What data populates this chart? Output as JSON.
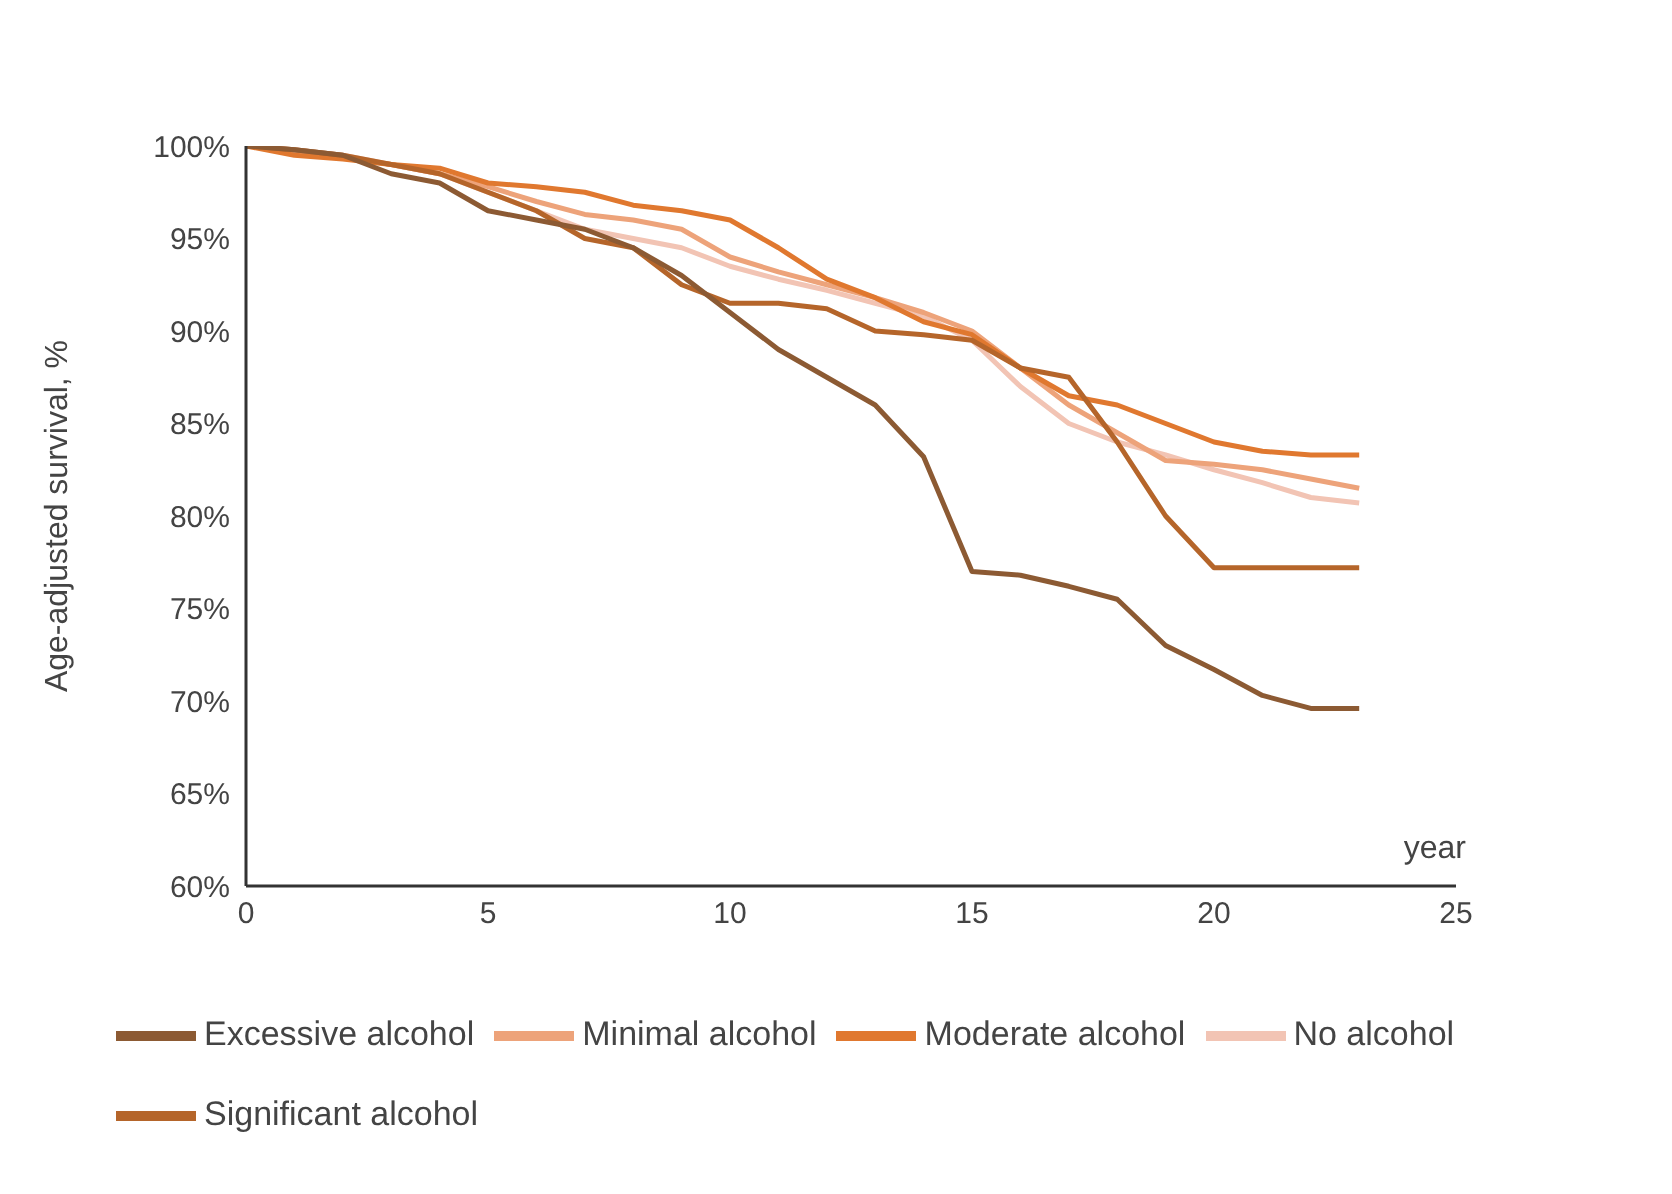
{
  "chart_data": {
    "type": "line",
    "xlabel": "year",
    "ylabel": "Age-adjusted survival, %",
    "x": [
      0,
      1,
      2,
      3,
      4,
      5,
      6,
      7,
      8,
      9,
      10,
      11,
      12,
      13,
      14,
      15,
      16,
      17,
      18,
      19,
      20,
      21,
      22,
      23
    ],
    "xlim": [
      0,
      25
    ],
    "xticks": [
      0,
      5,
      10,
      15,
      20,
      25
    ],
    "ylim": [
      60,
      100
    ],
    "yticks": [
      {
        "value": 60,
        "label": "60%"
      },
      {
        "value": 65,
        "label": "65%"
      },
      {
        "value": 70,
        "label": "70%"
      },
      {
        "value": 75,
        "label": "75%"
      },
      {
        "value": 80,
        "label": "80%"
      },
      {
        "value": 85,
        "label": "85%"
      },
      {
        "value": 90,
        "label": "90%"
      },
      {
        "value": 95,
        "label": "95%"
      },
      {
        "value": 100,
        "label": "100%"
      }
    ],
    "grid": false,
    "legend": "bottom",
    "marker": "none",
    "line_style": "solid",
    "series": [
      {
        "name": "No alcohol",
        "color": "#f2c4b4",
        "values": [
          100,
          99.8,
          99.5,
          99,
          98.5,
          97.5,
          96.5,
          95.5,
          95,
          94.5,
          93.5,
          92.8,
          92.2,
          91.5,
          90.8,
          89.5,
          87,
          85,
          84,
          83.3,
          82.5,
          81.8,
          81,
          80.7
        ]
      },
      {
        "name": "Minimal alcohol",
        "color": "#eda37a",
        "values": [
          100,
          99.7,
          99.4,
          99,
          98.5,
          97.8,
          97,
          96.3,
          96,
          95.5,
          94,
          93.2,
          92.5,
          91.8,
          91,
          90,
          88,
          86,
          84.5,
          83,
          82.8,
          82.5,
          82,
          81.5
        ]
      },
      {
        "name": "Moderate alcohol",
        "color": "#e0782f",
        "values": [
          100,
          99.5,
          99.3,
          99,
          98.8,
          98,
          97.8,
          97.5,
          96.8,
          96.5,
          96,
          94.5,
          92.8,
          91.8,
          90.5,
          89.8,
          88,
          86.5,
          86,
          85,
          84,
          83.5,
          83.3,
          83.3
        ]
      },
      {
        "name": "Significant alcohol",
        "color": "#b5652a",
        "values": [
          100,
          99.8,
          99.5,
          99,
          98.5,
          97.5,
          96.5,
          95,
          94.5,
          92.5,
          91.5,
          91.5,
          91.2,
          90,
          89.8,
          89.5,
          88,
          87.5,
          84,
          80,
          77.2,
          77.2,
          77.2,
          77.2
        ]
      },
      {
        "name": "Excessive alcohol",
        "color": "#8c5a33",
        "values": [
          100,
          99.8,
          99.5,
          98.5,
          98,
          96.5,
          96,
          95.5,
          94.5,
          93,
          91,
          89,
          87.5,
          86,
          83.2,
          77,
          76.8,
          76.2,
          75.5,
          73,
          71.7,
          70.3,
          69.6,
          69.6
        ]
      }
    ]
  }
}
